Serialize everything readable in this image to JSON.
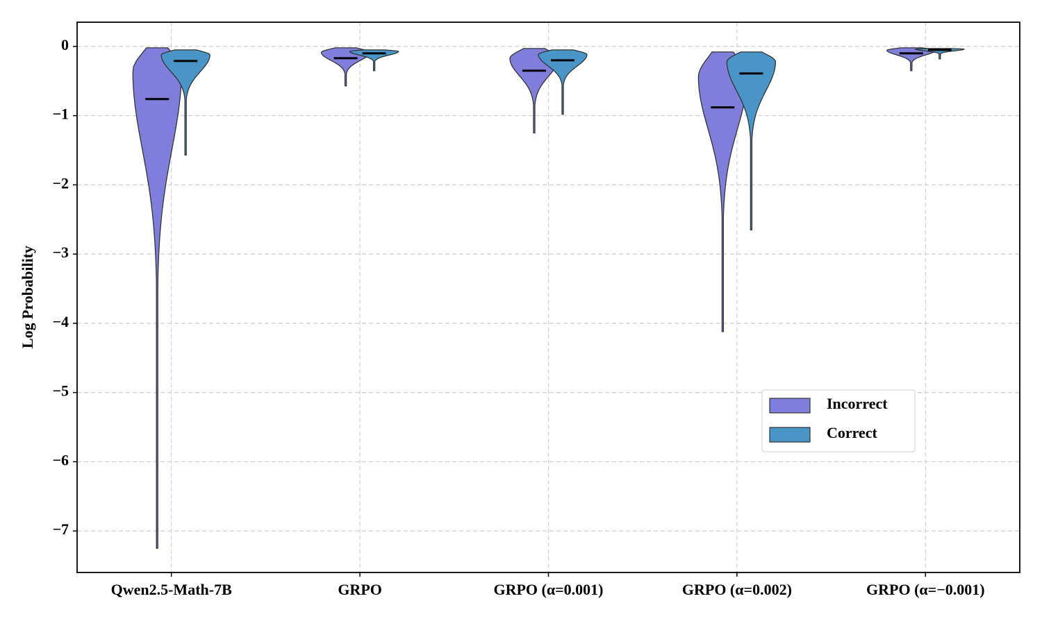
{
  "chart_data": {
    "type": "violin",
    "y_label": "Log Probability",
    "categories": [
      "Qwen2.5-Math-7B",
      "GRPO",
      "GRPO (α=0.001)",
      "GRPO (α=0.002)",
      "GRPO (α=−0.001)"
    ],
    "series": [
      {
        "name": "Incorrect",
        "color": "#7f7fdb",
        "median": [
          -0.76,
          -0.17,
          -0.35,
          -0.88,
          -0.1
        ],
        "min": [
          -7.25,
          -0.57,
          -1.25,
          -4.12,
          -0.35
        ],
        "max": [
          -0.02,
          -0.02,
          -0.03,
          -0.08,
          -0.02
        ]
      },
      {
        "name": "Correct",
        "color": "#4a95c8",
        "median": [
          -0.21,
          -0.1,
          -0.2,
          -0.39,
          -0.05
        ],
        "min": [
          -1.57,
          -0.35,
          -0.98,
          -2.65,
          -0.18
        ],
        "max": [
          -0.05,
          -0.05,
          -0.05,
          -0.08,
          -0.03
        ]
      }
    ],
    "ylim": [
      -7.6,
      0.35
    ],
    "yticks": [
      0,
      {
        "value": -1,
        "label": "−1"
      },
      {
        "value": -2,
        "label": "−2"
      },
      {
        "value": -3,
        "label": "−3"
      },
      {
        "value": -4,
        "label": "−4"
      },
      {
        "value": -5,
        "label": "−5"
      },
      {
        "value": -6,
        "label": "−6"
      },
      {
        "value": -7,
        "label": "−7"
      }
    ],
    "grid": true,
    "legend": "lower right"
  }
}
